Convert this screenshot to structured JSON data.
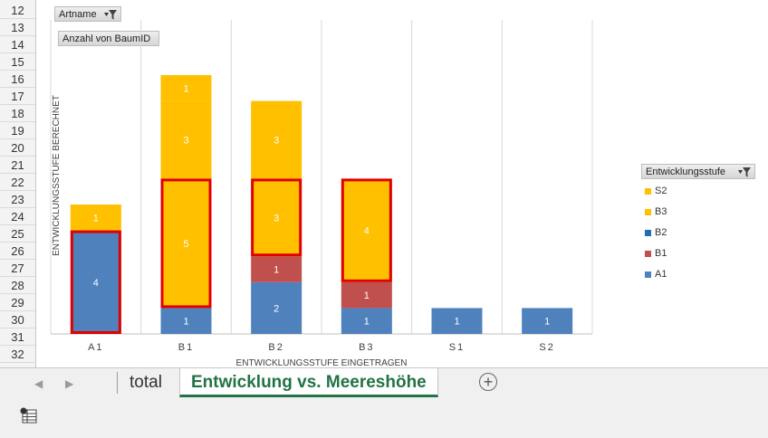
{
  "row_numbers": [
    "12",
    "13",
    "14",
    "15",
    "16",
    "17",
    "18",
    "19",
    "20",
    "21",
    "22",
    "23",
    "24",
    "25",
    "26",
    "27",
    "28",
    "29",
    "30",
    "31",
    "32"
  ],
  "pivot": {
    "row_field": "Artname",
    "value_field": "Anzahl von BaumID",
    "legend_field": "Entwicklungsstufe"
  },
  "chart_data": {
    "type": "bar",
    "stacked": true,
    "categories": [
      "A1",
      "B1",
      "B2",
      "B3",
      "S1",
      "S2"
    ],
    "xlabel": "ENTWICKLUNGSSTUFE EINGETRAGEN",
    "ylabel": "ENTWICKLUNGSSTUFE BERECHNET",
    "legend_position": "right",
    "grid": "vertical",
    "series": [
      {
        "name": "A1",
        "color": "#4f81bd",
        "values": [
          4,
          1,
          2,
          1,
          1,
          1
        ]
      },
      {
        "name": "B1",
        "color": "#c0504d",
        "values": [
          0,
          0,
          1,
          1,
          0,
          0
        ]
      },
      {
        "name": "B2",
        "color": "#1f6fb2",
        "values": [
          0,
          0,
          0,
          0,
          0,
          0
        ]
      },
      {
        "name": "B3",
        "color": "#ffc000",
        "values": [
          1,
          5,
          3,
          4,
          0,
          0
        ]
      },
      {
        "name": "S2",
        "color": "#ffc000",
        "values": [
          0,
          4,
          3,
          0,
          0,
          0
        ]
      }
    ],
    "segments": [
      {
        "category": "A1",
        "series": "A1",
        "value": 4
      },
      {
        "category": "A1",
        "series": "B3",
        "value": 1
      },
      {
        "category": "B1",
        "series": "A1",
        "value": 1
      },
      {
        "category": "B1",
        "series": "B3",
        "value": 5
      },
      {
        "category": "B1",
        "series": "S2",
        "value": 3
      },
      {
        "category": "B1",
        "series": "S2",
        "value": 1
      },
      {
        "category": "B2",
        "series": "A1",
        "value": 2
      },
      {
        "category": "B2",
        "series": "B1",
        "value": 1
      },
      {
        "category": "B2",
        "series": "B3",
        "value": 3
      },
      {
        "category": "B2",
        "series": "S2",
        "value": 3
      },
      {
        "category": "B3",
        "series": "A1",
        "value": 1
      },
      {
        "category": "B3",
        "series": "B1",
        "value": 1
      },
      {
        "category": "B3",
        "series": "B3",
        "value": 4
      },
      {
        "category": "S1",
        "series": "A1",
        "value": 1
      },
      {
        "category": "S2",
        "series": "A1",
        "value": 1
      }
    ],
    "highlighted": [
      {
        "category": "A1",
        "series": "A1"
      },
      {
        "category": "B1",
        "series": "B3"
      },
      {
        "category": "B2",
        "series": "B3"
      },
      {
        "category": "B3",
        "series": "B3"
      }
    ],
    "highlight_color": "#e00000"
  },
  "legend": [
    {
      "label": "S2",
      "color": "#ffc000"
    },
    {
      "label": "B3",
      "color": "#ffc000"
    },
    {
      "label": "B2",
      "color": "#1f6fb2"
    },
    {
      "label": "B1",
      "color": "#c0504d"
    },
    {
      "label": "A1",
      "color": "#4f81bd"
    }
  ],
  "tabs": {
    "nav_prev_icon": "triangle-left",
    "nav_next_icon": "triangle-right",
    "sheet1": "total",
    "sheet2": "Entwicklung vs. Meereshöhe",
    "add_label": "+"
  },
  "status": {
    "icon": "macro-record-icon"
  }
}
